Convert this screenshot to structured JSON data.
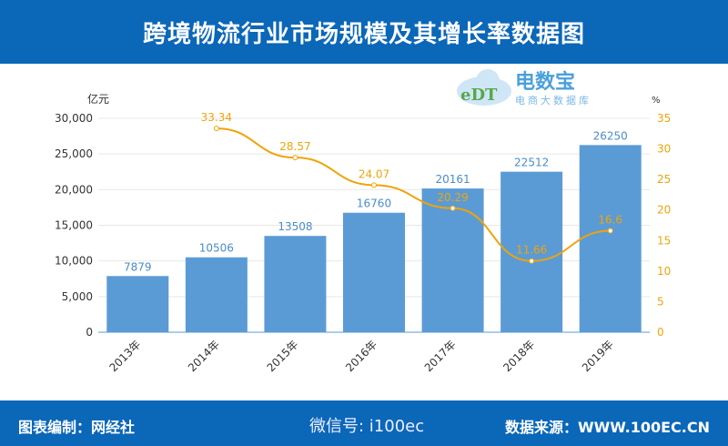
{
  "header": {
    "title": "跨境物流行业市场规模及其增长率数据图"
  },
  "footer": {
    "left": "图表编制：网经社",
    "right": "数据来源：WWW.100EC.CN",
    "watermark": "微信号: i100ec"
  },
  "logo": {
    "name": "电数宝",
    "sub": "电商大数据库",
    "mark": "eDT"
  },
  "chart_data": {
    "type": "bar",
    "categories": [
      "2013年",
      "2014年",
      "2015年",
      "2016年",
      "2017年",
      "2018年",
      "2019年"
    ],
    "series": [
      {
        "type": "bar",
        "axis": "left",
        "values": [
          7879,
          10506,
          13508,
          16760,
          20161,
          22512,
          26250
        ],
        "color": "#5b9bd5"
      },
      {
        "type": "line",
        "axis": "right",
        "values": [
          null,
          33.34,
          28.57,
          24.07,
          20.29,
          11.66,
          16.6
        ],
        "color": "#f0a30a"
      }
    ],
    "ylabel": "亿元",
    "y2label": "%",
    "ylim": [
      0,
      30000
    ],
    "yticks": [
      0,
      5000,
      10000,
      15000,
      20000,
      25000,
      30000
    ],
    "y2lim": [
      0,
      35
    ],
    "y2ticks": [
      0,
      5,
      10,
      15,
      20,
      25,
      30,
      35
    ],
    "grid": true
  }
}
